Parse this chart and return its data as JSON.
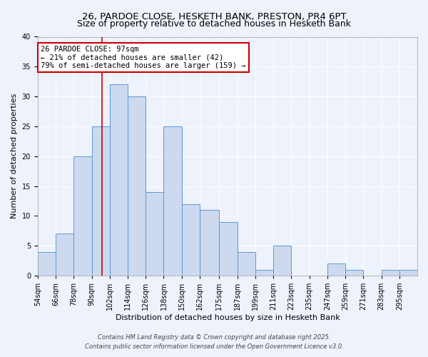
{
  "title": "26, PARDOE CLOSE, HESKETH BANK, PRESTON, PR4 6PT",
  "subtitle": "Size of property relative to detached houses in Hesketh Bank",
  "xlabel": "Distribution of detached houses by size in Hesketh Bank",
  "ylabel": "Number of detached properties",
  "bin_labels": [
    "54sqm",
    "66sqm",
    "78sqm",
    "90sqm",
    "102sqm",
    "114sqm",
    "126sqm",
    "138sqm",
    "150sqm",
    "162sqm",
    "175sqm",
    "187sqm",
    "199sqm",
    "211sqm",
    "223sqm",
    "235sqm",
    "247sqm",
    "259sqm",
    "271sqm",
    "283sqm",
    "295sqm"
  ],
  "bin_lefts": [
    54,
    66,
    78,
    90,
    102,
    114,
    126,
    138,
    150,
    162,
    175,
    187,
    199,
    211,
    223,
    235,
    247,
    259,
    271,
    283,
    295
  ],
  "bin_rights": [
    66,
    78,
    90,
    102,
    114,
    126,
    138,
    150,
    162,
    175,
    187,
    199,
    211,
    223,
    235,
    247,
    259,
    271,
    283,
    295,
    307
  ],
  "bar_heights": [
    4,
    7,
    20,
    25,
    32,
    30,
    14,
    25,
    12,
    11,
    9,
    4,
    1,
    5,
    0,
    0,
    2,
    1,
    0,
    1,
    1
  ],
  "bar_color": "#ccd9ef",
  "bar_edge_color": "#5b9bd5",
  "marker_x": 97,
  "annotation_title": "26 PARDOE CLOSE: 97sqm",
  "annotation_line1": "← 21% of detached houses are smaller (42)",
  "annotation_line2": "79% of semi-detached houses are larger (159) →",
  "annotation_box_facecolor": "#ffffff",
  "annotation_border_color": "#cc0000",
  "marker_line_color": "#cc0000",
  "ylim": [
    0,
    40
  ],
  "yticks": [
    0,
    5,
    10,
    15,
    20,
    25,
    30,
    35,
    40
  ],
  "xlim_left": 54,
  "xlim_right": 307,
  "bg_color": "#eef2fb",
  "grid_color": "#ffffff",
  "footer1": "Contains HM Land Registry data © Crown copyright and database right 2025.",
  "footer2": "Contains public sector information licensed under the Open Government Licence v3.0.",
  "title_fontsize": 9.5,
  "axis_label_fontsize": 8,
  "tick_fontsize": 7,
  "annotation_fontsize": 7.5,
  "footer_fontsize": 6
}
